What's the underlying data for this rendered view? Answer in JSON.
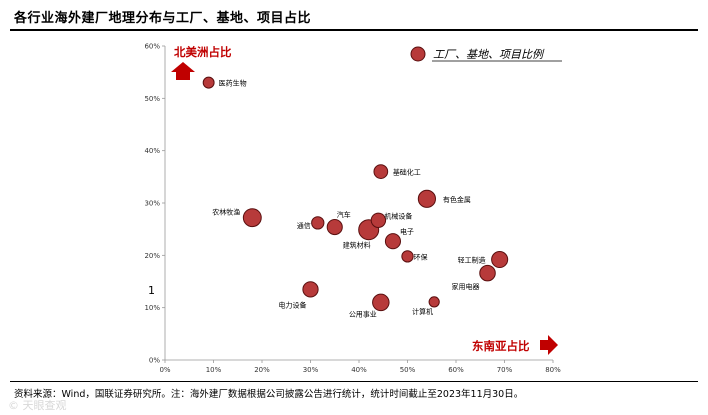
{
  "header": {
    "title": "各行业海外建厂地理分布与工厂、基地、项目占比"
  },
  "footer": {
    "source": "资料来源：Wind，国联证券研究所。注：海外建厂数据根据公司披露公告进行统计，统计时间截止至2023年11月30日。"
  },
  "watermark": "© 天眼查观",
  "side_mark": "1",
  "colors": {
    "bubble_fill": "#b73a3a",
    "bubble_stroke": "#5a0f0f",
    "accent": "#c00000"
  },
  "chart_data": {
    "type": "scatter",
    "title": "",
    "xlabel": "东南亚占比",
    "ylabel": "北美洲占比",
    "xlim": [
      0,
      0.8
    ],
    "ylim": [
      0,
      0.6
    ],
    "x_ticks": [
      "0%",
      "10%",
      "20%",
      "30%",
      "40%",
      "50%",
      "60%",
      "70%",
      "80%"
    ],
    "y_ticks": [
      "0%",
      "10%",
      "20%",
      "30%",
      "40%",
      "50%",
      "60%"
    ],
    "legend": {
      "label": "工厂、基地、项目比例",
      "position": "top-right"
    },
    "points": [
      {
        "name": "医药生物",
        "x": 0.09,
        "y": 0.53,
        "size": 0.35
      },
      {
        "name": "基础化工",
        "x": 0.445,
        "y": 0.36,
        "size": 0.55
      },
      {
        "name": "有色金属",
        "x": 0.54,
        "y": 0.308,
        "size": 0.8
      },
      {
        "name": "农林牧渔",
        "x": 0.18,
        "y": 0.272,
        "size": 0.85
      },
      {
        "name": "机械设备",
        "x": 0.44,
        "y": 0.267,
        "size": 0.6
      },
      {
        "name": "通信",
        "x": 0.315,
        "y": 0.262,
        "size": 0.45
      },
      {
        "name": "汽车",
        "x": 0.35,
        "y": 0.254,
        "size": 0.65
      },
      {
        "name": "建筑材料",
        "x": 0.42,
        "y": 0.249,
        "size": 1.0
      },
      {
        "name": "电子",
        "x": 0.47,
        "y": 0.227,
        "size": 0.65
      },
      {
        "name": "环保",
        "x": 0.5,
        "y": 0.198,
        "size": 0.38
      },
      {
        "name": "轻工制造",
        "x": 0.69,
        "y": 0.192,
        "size": 0.72
      },
      {
        "name": "家用电器",
        "x": 0.665,
        "y": 0.166,
        "size": 0.68
      },
      {
        "name": "电力设备",
        "x": 0.3,
        "y": 0.135,
        "size": 0.66
      },
      {
        "name": "公用事业",
        "x": 0.445,
        "y": 0.11,
        "size": 0.75
      },
      {
        "name": "计算机",
        "x": 0.555,
        "y": 0.111,
        "size": 0.3
      }
    ]
  }
}
